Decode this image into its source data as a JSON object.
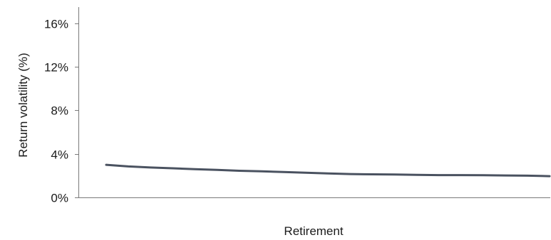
{
  "chart_data": {
    "type": "line",
    "title": "",
    "xlabel": "Retirement",
    "ylabel": "Return volatility (%)",
    "ylim": [
      0,
      17.5
    ],
    "yticks": [
      0,
      4,
      8,
      12,
      16
    ],
    "ytick_labels": [
      "0%",
      "4%",
      "8%",
      "12%",
      "16%"
    ],
    "x_ticks_shown": false,
    "grid": false,
    "legend": "none",
    "series": [
      {
        "color": "#4a5260",
        "x": [
          0,
          1,
          2,
          3,
          4,
          5,
          6,
          7,
          8,
          9,
          10,
          11,
          12,
          13,
          14,
          15,
          16,
          17,
          18,
          19,
          20
        ],
        "values": [
          3.0,
          2.85,
          2.75,
          2.68,
          2.6,
          2.53,
          2.45,
          2.4,
          2.33,
          2.27,
          2.2,
          2.15,
          2.12,
          2.1,
          2.07,
          2.05,
          2.05,
          2.04,
          2.02,
          2.0,
          1.95
        ]
      }
    ]
  }
}
